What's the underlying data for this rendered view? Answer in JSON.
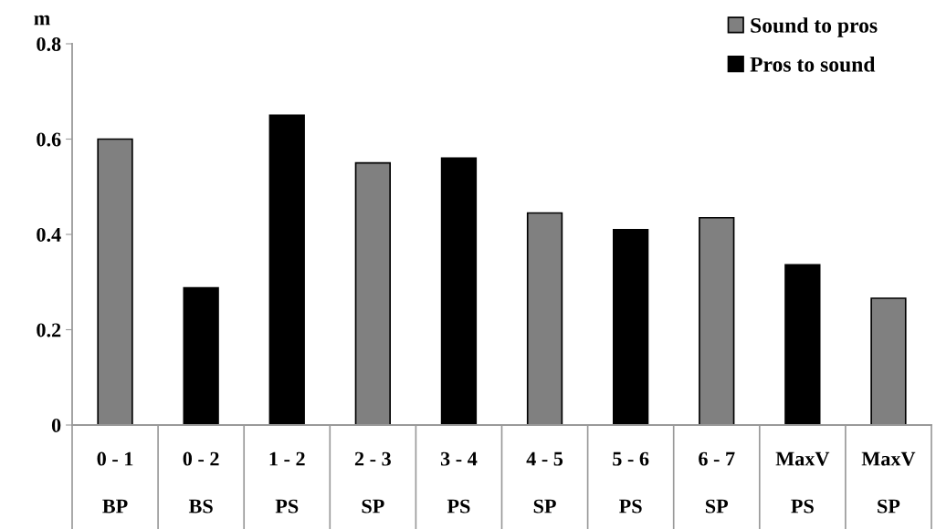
{
  "chart_data": {
    "type": "bar",
    "ylabel": "m",
    "categories": [
      "0 - 1\nBP",
      "0 - 2\nBS",
      "1 - 2\nPS",
      "2 - 3\nSP",
      "3 - 4\nPS",
      "4 - 5\nSP",
      "5 - 6\nPS",
      "6 - 7\nSP",
      "MaxV\nPS",
      "MaxV\nSP"
    ],
    "series": [
      {
        "name": "Sound to pros",
        "color": "#808080",
        "values": [
          0.6,
          null,
          null,
          0.55,
          null,
          0.445,
          null,
          0.435,
          null,
          0.266
        ]
      },
      {
        "name": "Pros to sound",
        "color": "#000000",
        "values": [
          null,
          0.288,
          0.65,
          null,
          0.56,
          null,
          0.41,
          null,
          0.336,
          null
        ]
      }
    ],
    "ylim": [
      0,
      0.8
    ],
    "yticks": [
      0,
      0.2,
      0.4,
      0.6,
      0.8
    ],
    "grid": false,
    "legend": "top right"
  }
}
